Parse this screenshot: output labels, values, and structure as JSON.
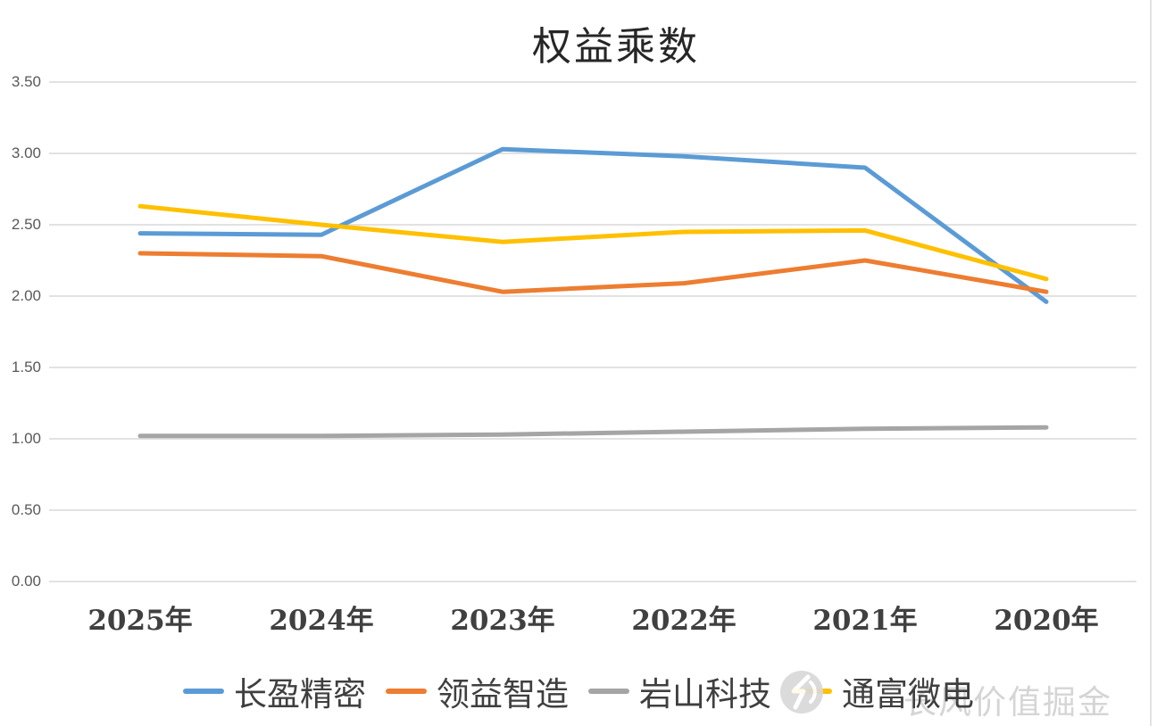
{
  "chart_data": {
    "type": "line",
    "title": "权益乘数",
    "categories": [
      "2025年",
      "2024年",
      "2023年",
      "2022年",
      "2021年",
      "2020年"
    ],
    "series": [
      {
        "name": "长盈精密",
        "color": "#5B9BD5",
        "values": [
          2.44,
          2.43,
          3.03,
          2.98,
          2.9,
          1.96
        ]
      },
      {
        "name": "领益智造",
        "color": "#ED7D31",
        "values": [
          2.3,
          2.28,
          2.03,
          2.09,
          2.25,
          2.03
        ]
      },
      {
        "name": "岩山科技",
        "color": "#A5A5A5",
        "values": [
          1.02,
          1.02,
          1.03,
          1.05,
          1.07,
          1.08
        ]
      },
      {
        "name": "通富微电",
        "color": "#FFC000",
        "values": [
          2.63,
          2.5,
          2.38,
          2.45,
          2.46,
          2.12
        ]
      }
    ],
    "y_ticks": [
      "3.50",
      "3.00",
      "2.50",
      "2.00",
      "1.50",
      "1.00",
      "0.50",
      "0.00"
    ],
    "ylim": [
      0.0,
      3.5
    ],
    "xlabel": "",
    "ylabel": "",
    "grid": true,
    "legend_position": "bottom"
  },
  "watermark": {
    "text": "长风价值掘金",
    "logo": "circle-bolt-logo"
  },
  "colors": {
    "gridline": "#E2E2E2",
    "axis_tick_text": "#595959",
    "category_text": "#404040",
    "legend_text": "#3F3F3F",
    "watermark": "#D5D5D5",
    "background": "#FFFFFF"
  }
}
